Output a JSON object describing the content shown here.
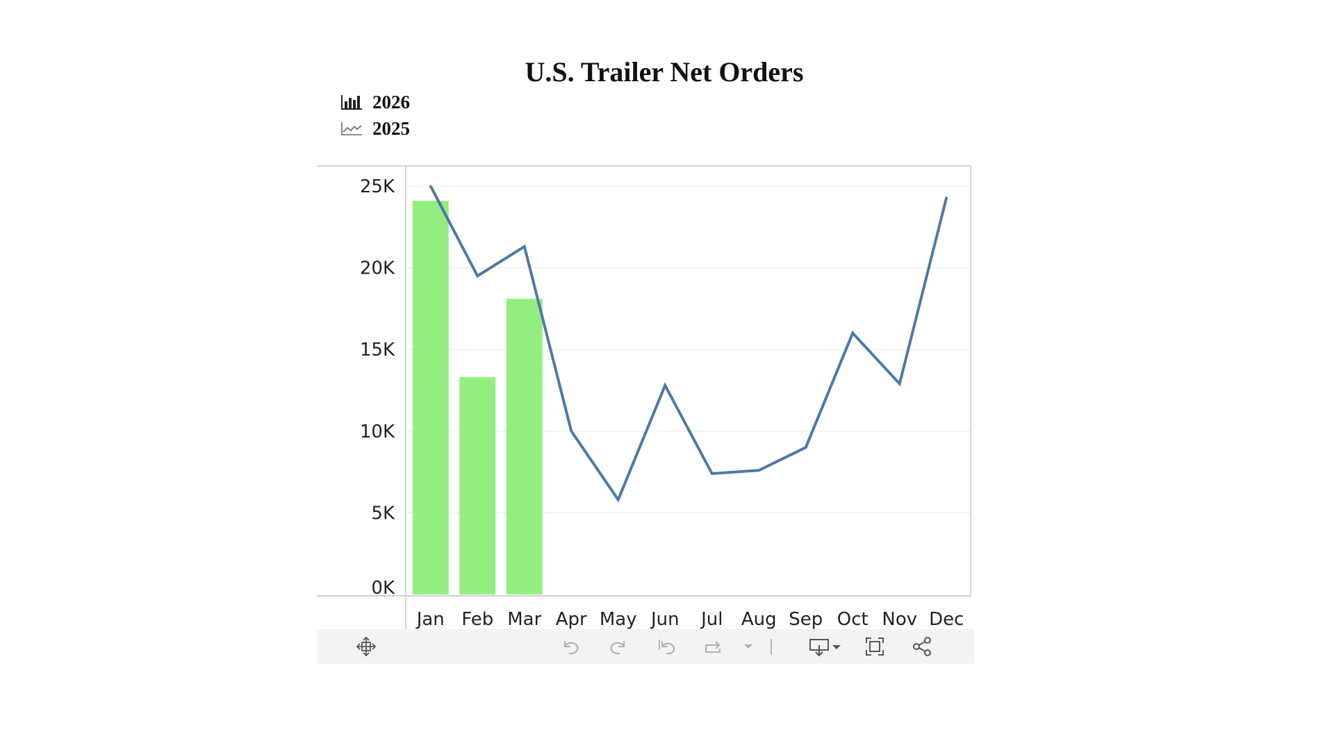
{
  "chart_data": {
    "type": "bar+line",
    "title": "U.S. Trailer Net Orders",
    "categories": [
      "Jan",
      "Feb",
      "Mar",
      "Apr",
      "May",
      "Jun",
      "Jul",
      "Aug",
      "Sep",
      "Oct",
      "Nov",
      "Dec"
    ],
    "series": [
      {
        "name": "2026",
        "type": "bar",
        "color": "#93ee80",
        "values": [
          24100,
          13300,
          18100,
          null,
          null,
          null,
          null,
          null,
          null,
          null,
          null,
          null
        ]
      },
      {
        "name": "2025",
        "type": "line",
        "color": "#4e79a7",
        "values": [
          25000,
          19500,
          21300,
          10000,
          5800,
          12800,
          7400,
          7600,
          9000,
          16000,
          12900,
          24300
        ]
      }
    ],
    "yticks": [
      "0K",
      "5K",
      "10K",
      "15K",
      "20K",
      "25K"
    ],
    "ytick_values": [
      0,
      5000,
      10000,
      15000,
      20000,
      25000
    ],
    "ylim": [
      0,
      25000
    ],
    "grid": true,
    "legend_position": "top-left"
  },
  "toolbar": {
    "icons": [
      "move-icon",
      "undo-icon",
      "redo-icon",
      "revert-icon",
      "refresh-icon",
      "dropdown-icon",
      "download-icon",
      "fullscreen-icon",
      "share-icon"
    ]
  }
}
